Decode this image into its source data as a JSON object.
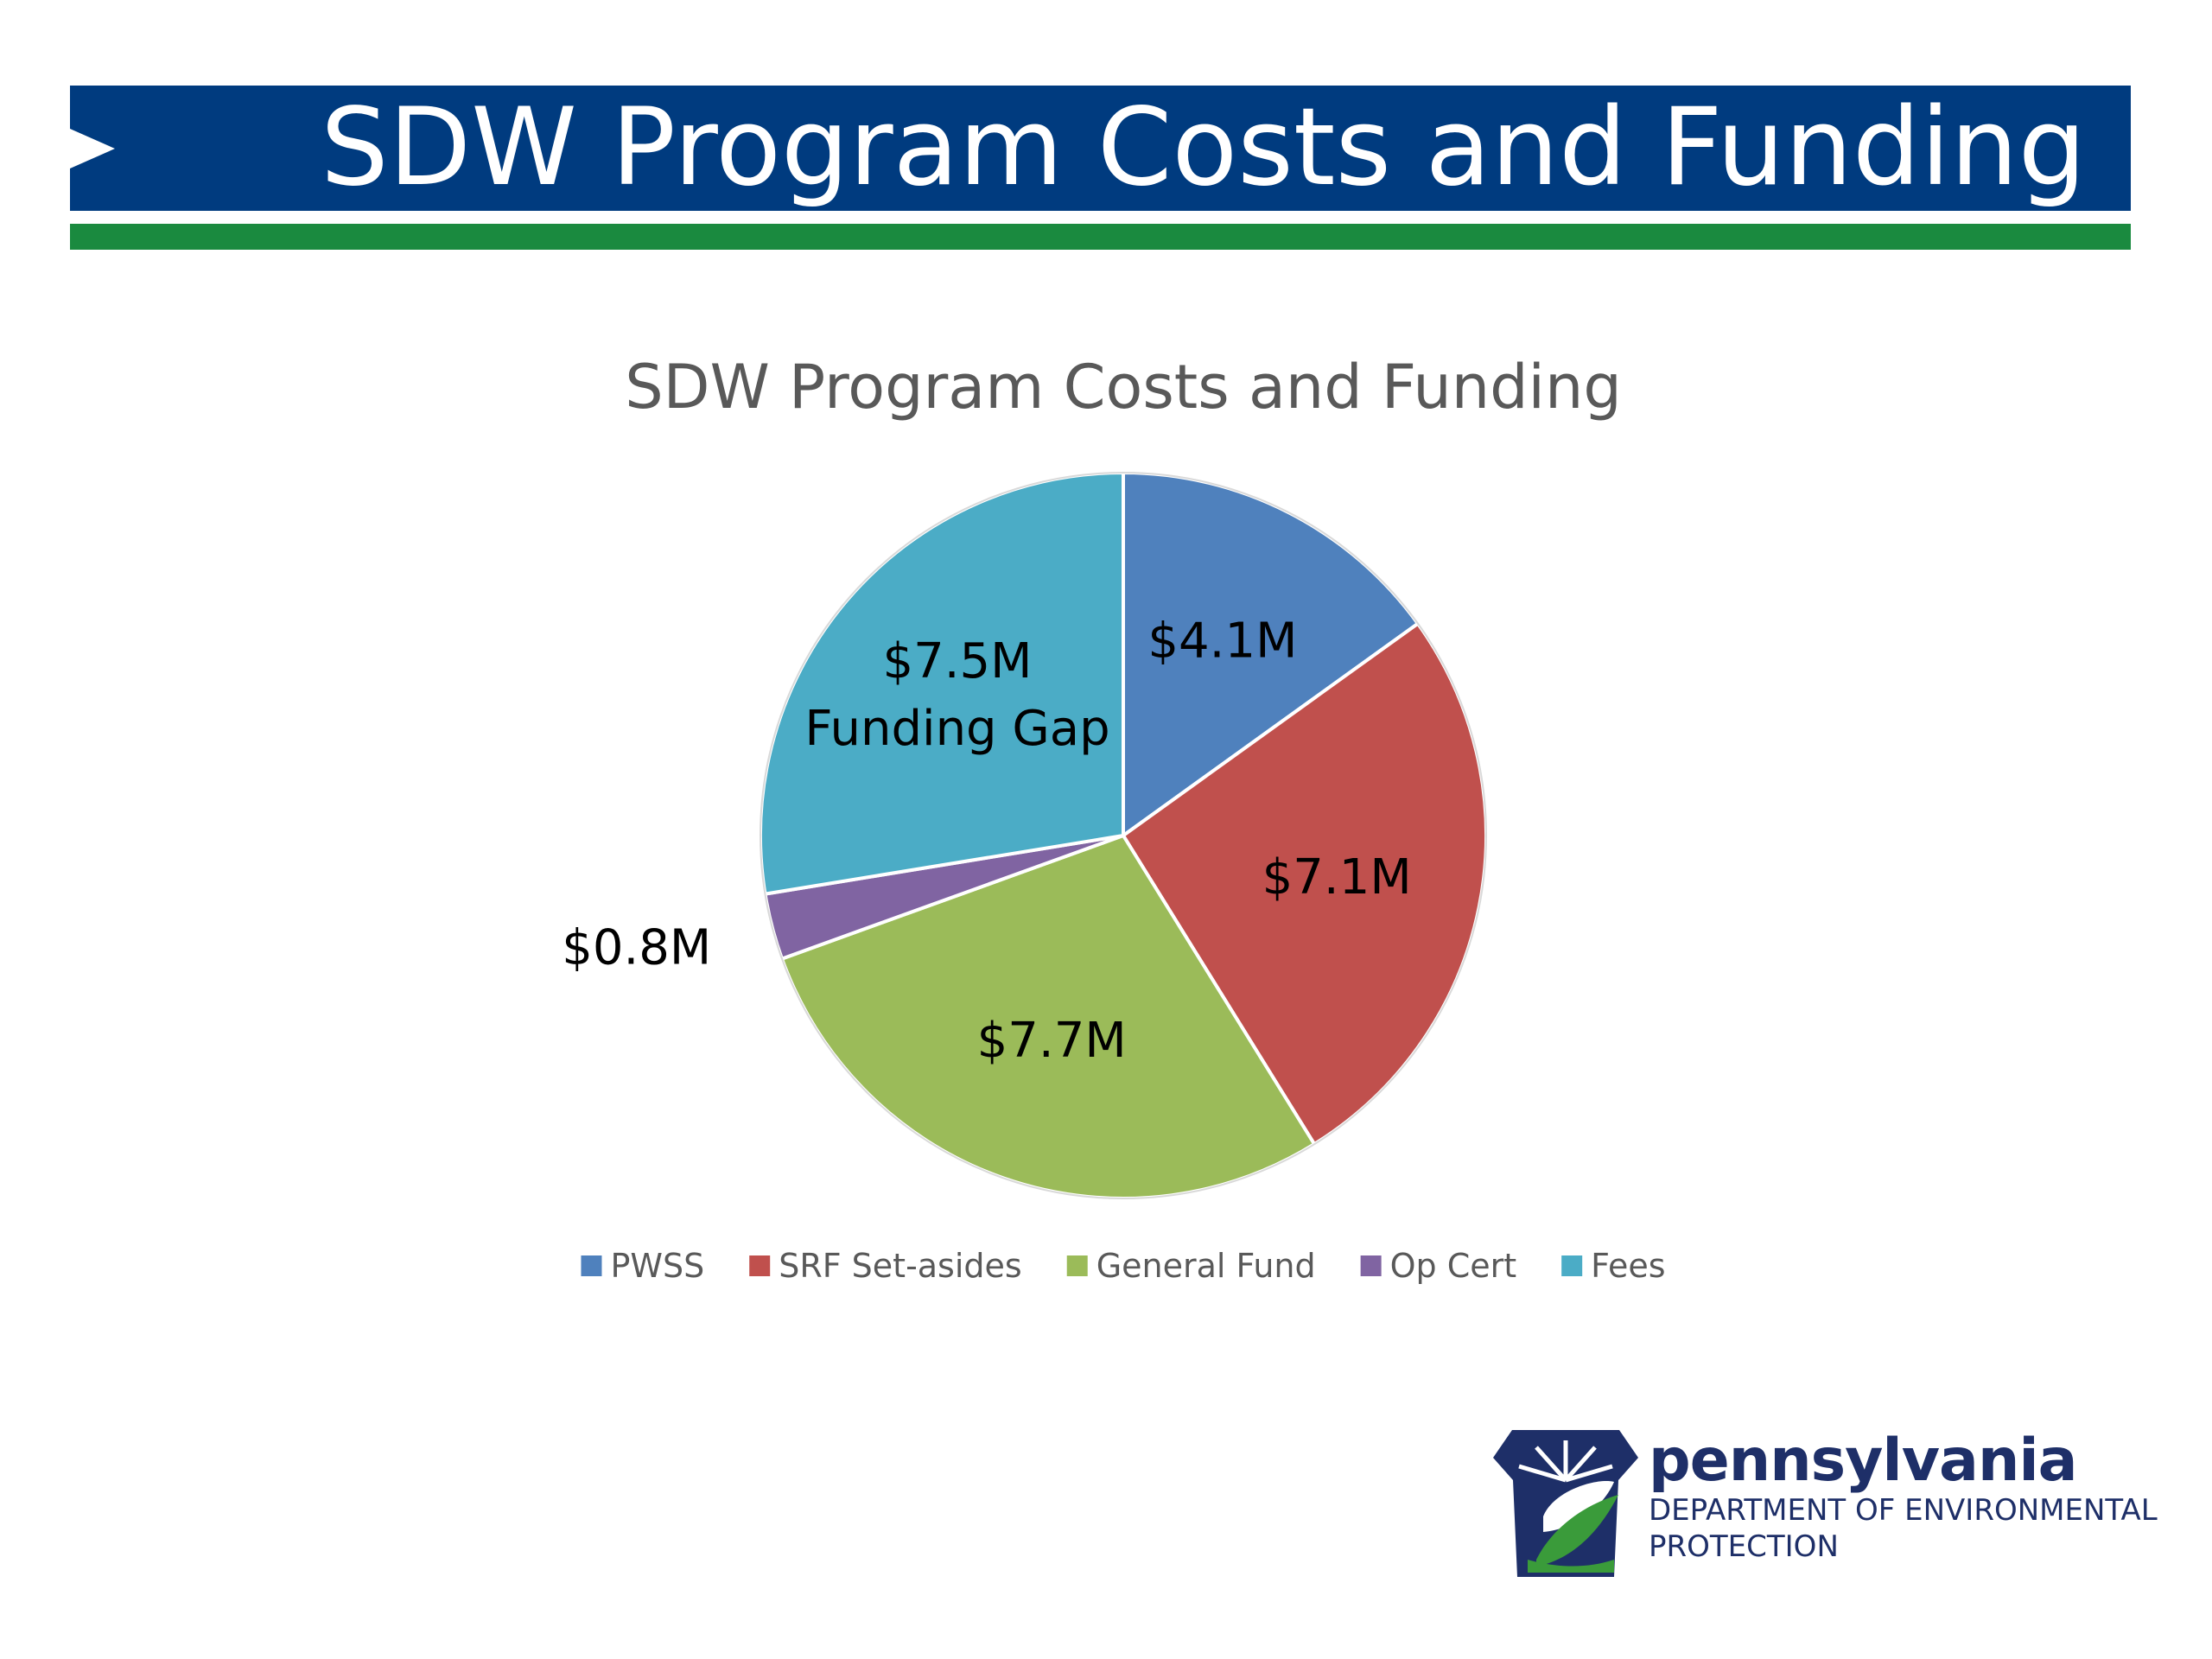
{
  "slide": {
    "title": "SDW Program Costs and Funding"
  },
  "chart_data": {
    "type": "pie",
    "title": "SDW Program Costs and Funding",
    "slices": [
      {
        "name": "PWSS",
        "value": 4.1,
        "label": "$4.1M",
        "label2": "",
        "color": "#4f81bd"
      },
      {
        "name": "SRF Set-asides",
        "value": 7.1,
        "label": "$7.1M",
        "label2": "",
        "color": "#c0504d"
      },
      {
        "name": "General Fund",
        "value": 7.7,
        "label": "$7.7M",
        "label2": "",
        "color": "#9bbb59"
      },
      {
        "name": "Op Cert",
        "value": 0.8,
        "label": "$0.8M",
        "label2": "",
        "color": "#8064a2"
      },
      {
        "name": "Fees",
        "value": 7.5,
        "label": "$7.5M",
        "label2": "Funding Gap",
        "color": "#4bacc6"
      }
    ],
    "legend_position": "bottom"
  },
  "logo": {
    "brand": "pennsylvania",
    "department_line1": "DEPARTMENT OF ENVIRONMENTAL",
    "department_line2": "PROTECTION",
    "colors": {
      "blue": "#1e2f68",
      "green": "#3a9b3a"
    }
  }
}
